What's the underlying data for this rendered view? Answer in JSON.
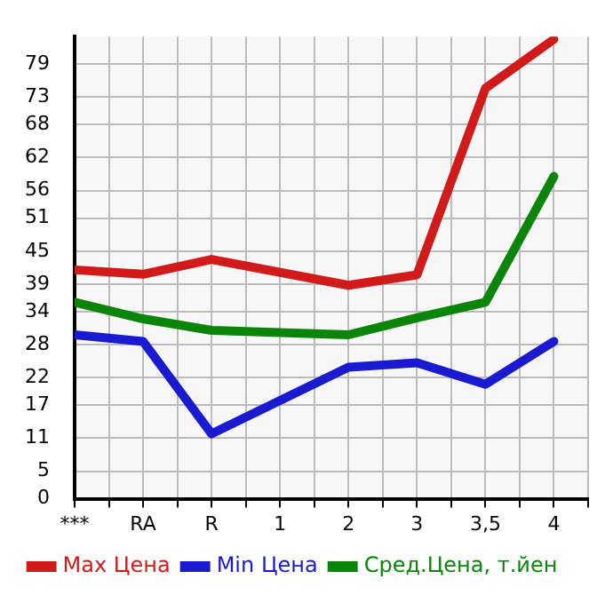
{
  "chart_data": {
    "type": "line",
    "categories": [
      "***",
      "RA",
      "R",
      "1",
      "2",
      "3",
      "3,5",
      "4"
    ],
    "series": [
      {
        "name": "Max Цена",
        "color": "#d11a1a",
        "values": [
          41.6,
          40.8,
          43.5,
          null,
          38.8,
          40.7,
          74.6,
          83.5
        ]
      },
      {
        "name": "Min Цена",
        "color": "#1a1ad1",
        "values": [
          29.8,
          28.6,
          11.8,
          null,
          23.9,
          24.7,
          20.8,
          28.6
        ]
      },
      {
        "name": "Сред.Цена, т.йен",
        "color": "#0a850a",
        "values": [
          35.7,
          32.7,
          30.6,
          null,
          29.8,
          32.9,
          35.7,
          58.6
        ]
      }
    ],
    "ylim": [
      0,
      84
    ],
    "yticks": [
      0,
      5,
      11,
      17,
      22,
      28,
      34,
      39,
      45,
      51,
      56,
      62,
      68,
      73,
      79
    ],
    "grid": true,
    "legend": "bottom",
    "marker": "none",
    "line_style": "solid"
  }
}
